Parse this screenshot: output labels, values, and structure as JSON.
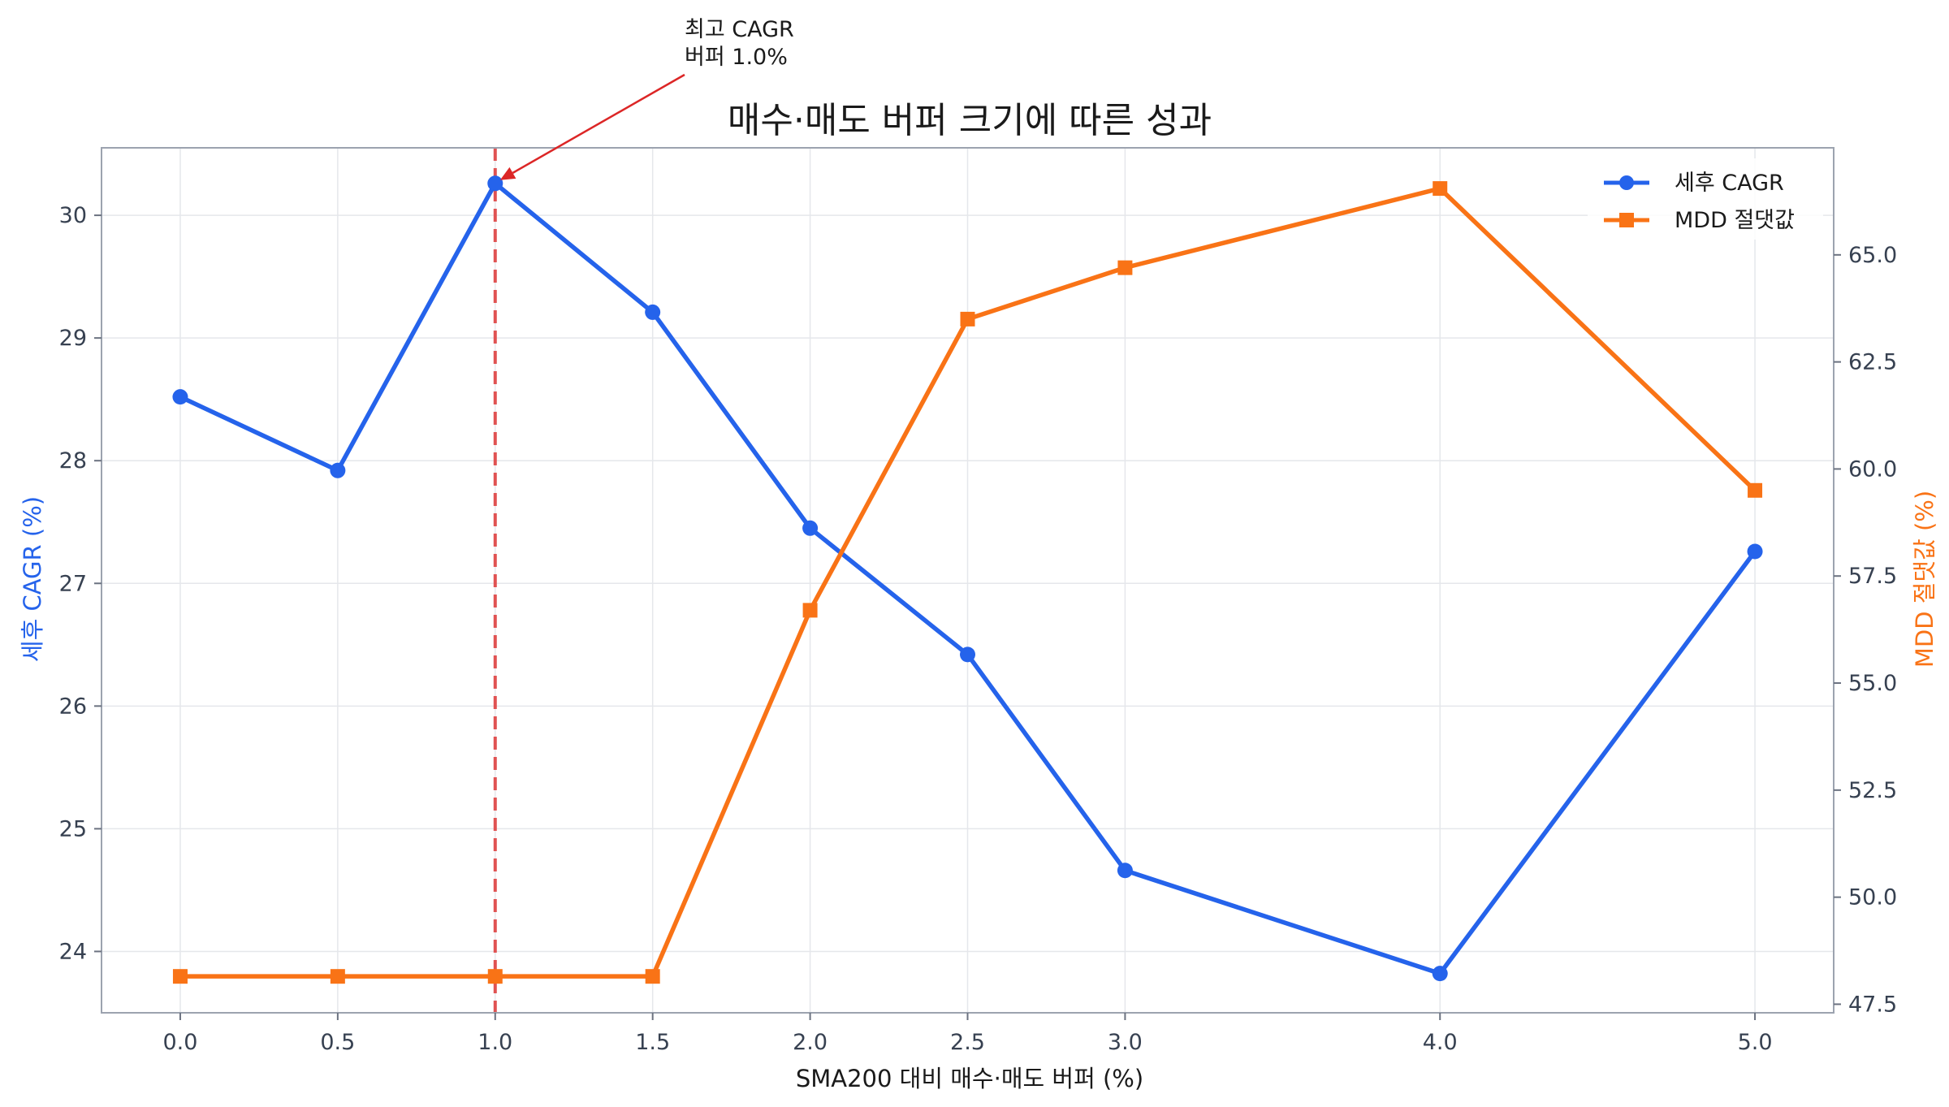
{
  "title": "매수·매도 버퍼 크기에 따른 성과",
  "chart_data": {
    "type": "line",
    "title": "매수·매도 버퍼 크기에 따른 성과",
    "xlabel": "SMA200 대비 매수·매도 버퍼 (%)",
    "ylabel_left": "세후 CAGR (%)",
    "ylabel_right": "MDD 절댓값 (%)",
    "x": [
      0.0,
      0.5,
      1.0,
      1.5,
      2.0,
      2.5,
      3.0,
      4.0,
      5.0
    ],
    "x_tick_labels": [
      "0.0",
      "0.5",
      "1.0",
      "1.5",
      "2.0",
      "2.5",
      "3.0",
      "4.0",
      "5.0"
    ],
    "xlim": [
      -0.25,
      5.25
    ],
    "ylim_left": [
      23.5,
      30.55
    ],
    "ylim_right": [
      47.3,
      67.5
    ],
    "y_left_ticks": [
      "24",
      "25",
      "26",
      "27",
      "28",
      "29",
      "30"
    ],
    "y_right_ticks": [
      "47.5",
      "50.0",
      "52.5",
      "55.0",
      "57.5",
      "60.0",
      "62.5",
      "65.0"
    ],
    "grid": true,
    "legend_position": "top-right",
    "series": [
      {
        "name": "세후 CAGR",
        "axis": "left",
        "color": "#2563eb",
        "marker": "circle",
        "values": [
          28.52,
          27.92,
          30.26,
          29.21,
          27.45,
          26.42,
          24.66,
          23.82,
          27.26
        ]
      },
      {
        "name": "MDD 절댓값",
        "axis": "right",
        "color": "#f97316",
        "marker": "square",
        "values": [
          48.15,
          48.15,
          48.15,
          48.15,
          56.7,
          63.5,
          64.7,
          66.55,
          59.5
        ]
      }
    ],
    "annotation": {
      "lines": [
        "최고 CAGR",
        "버퍼 1.0%"
      ],
      "x": 1.0,
      "y": 30.26,
      "color": "#dc2626"
    },
    "vline": {
      "x": 1.0,
      "color": "#e05252",
      "style": "dashed"
    }
  }
}
